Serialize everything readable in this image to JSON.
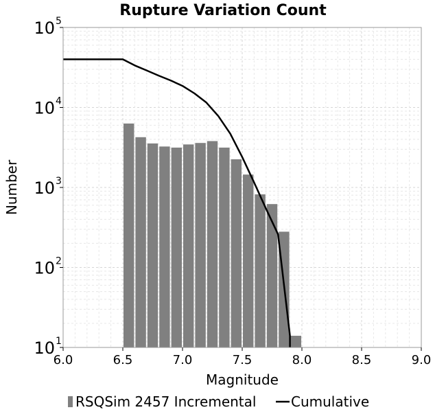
{
  "chart_data": {
    "type": "bar",
    "title": "Rupture Variation Count",
    "xlabel": "Magnitude",
    "ylabel": "Number",
    "xlim": [
      6.0,
      9.0
    ],
    "ylim": [
      10,
      100000
    ],
    "yscale": "log",
    "grid": true,
    "legend_position": "bottom",
    "x_ticks": [
      "6.0",
      "6.5",
      "7.0",
      "7.5",
      "8.0",
      "8.5",
      "9.0"
    ],
    "y_ticks": [
      {
        "base": "10",
        "exp": "1",
        "value": 10
      },
      {
        "base": "10",
        "exp": "2",
        "value": 100
      },
      {
        "base": "10",
        "exp": "3",
        "value": 1000
      },
      {
        "base": "10",
        "exp": "4",
        "value": 10000
      },
      {
        "base": "10",
        "exp": "5",
        "value": 100000
      }
    ],
    "bar_width": 0.1,
    "series": [
      {
        "name": "RSQSim 2457 Incremental",
        "type": "bar",
        "color": "#808080",
        "x": [
          6.55,
          6.65,
          6.75,
          6.85,
          6.95,
          7.05,
          7.15,
          7.25,
          7.35,
          7.45,
          7.55,
          7.65,
          7.75,
          7.85,
          7.95
        ],
        "values": [
          6300,
          4250,
          3550,
          3250,
          3150,
          3450,
          3600,
          3800,
          3150,
          2250,
          1450,
          820,
          620,
          280,
          14
        ]
      },
      {
        "name": "Cumulative",
        "type": "line",
        "color": "#000000",
        "x": [
          6.0,
          6.5,
          6.6,
          6.7,
          6.8,
          6.9,
          7.0,
          7.1,
          7.2,
          7.3,
          7.4,
          7.5,
          7.6,
          7.7,
          7.8,
          7.9
        ],
        "values": [
          40000,
          40000,
          33500,
          29000,
          25000,
          21800,
          18600,
          15000,
          11500,
          7800,
          4700,
          2400,
          1150,
          540,
          260,
          14
        ]
      }
    ]
  }
}
